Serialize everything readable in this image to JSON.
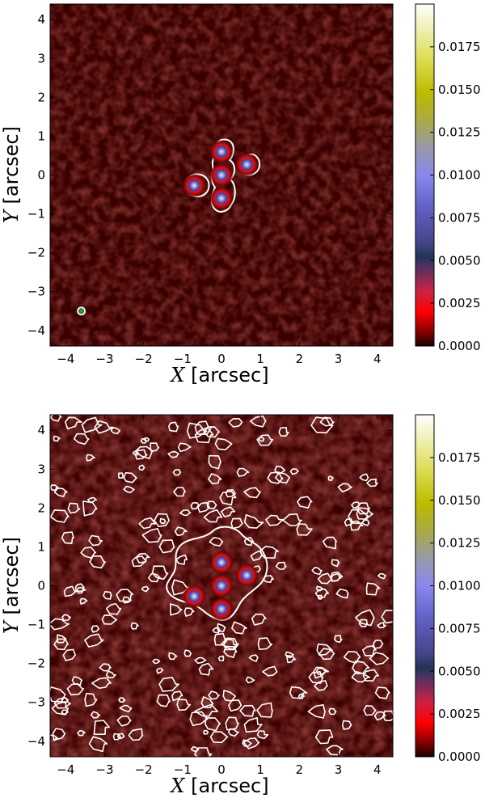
{
  "chart_data": [
    {
      "type": "heatmap",
      "title": "",
      "xlabel_symbol": "X",
      "xlabel_unit": "[arcsec]",
      "ylabel_symbol": "Y",
      "ylabel_unit": "[arcsec]",
      "xlim": [
        -4.4,
        4.4
      ],
      "ylim": [
        -4.4,
        4.4
      ],
      "x_ticks": [
        "−4",
        "−3",
        "−2",
        "−1",
        "0",
        "1",
        "2",
        "3",
        "4"
      ],
      "y_ticks": [
        "−4",
        "−3",
        "−2",
        "−1",
        "0",
        "1",
        "2",
        "3",
        "4"
      ],
      "colorbar": {
        "range": [
          0,
          0.02
        ],
        "ticks": [
          "0.0000",
          "0.0025",
          "0.0050",
          "0.0075",
          "0.0100",
          "0.0125",
          "0.0150",
          "0.0175"
        ]
      },
      "sources": [
        {
          "x": 0.0,
          "y": 0.6
        },
        {
          "x": 0.0,
          "y": 0.0
        },
        {
          "x": 0.0,
          "y": -0.6
        },
        {
          "x": 0.65,
          "y": 0.27
        },
        {
          "x": -0.7,
          "y": -0.27
        }
      ],
      "beam": {
        "x": -3.6,
        "y": -3.5
      }
    },
    {
      "type": "heatmap",
      "title": "",
      "xlabel_symbol": "X",
      "xlabel_unit": "[arcsec]",
      "ylabel_symbol": "Y",
      "ylabel_unit": "[arcsec]",
      "xlim": [
        -4.4,
        4.4
      ],
      "ylim": [
        -4.4,
        4.4
      ],
      "x_ticks": [
        "−4",
        "−3",
        "−2",
        "−1",
        "0",
        "1",
        "2",
        "3",
        "4"
      ],
      "y_ticks": [
        "−4",
        "−3",
        "−2",
        "−1",
        "0",
        "1",
        "2",
        "3",
        "4"
      ],
      "colorbar": {
        "range": [
          0,
          0.02
        ],
        "ticks": [
          "0.0000",
          "0.0025",
          "0.0050",
          "0.0075",
          "0.0100",
          "0.0125",
          "0.0150",
          "0.0175"
        ]
      },
      "sources": [
        {
          "x": 0.0,
          "y": 0.6
        },
        {
          "x": 0.0,
          "y": 0.0
        },
        {
          "x": 0.0,
          "y": -0.6
        },
        {
          "x": 0.65,
          "y": 0.27
        },
        {
          "x": -0.7,
          "y": -0.27
        }
      ]
    }
  ]
}
